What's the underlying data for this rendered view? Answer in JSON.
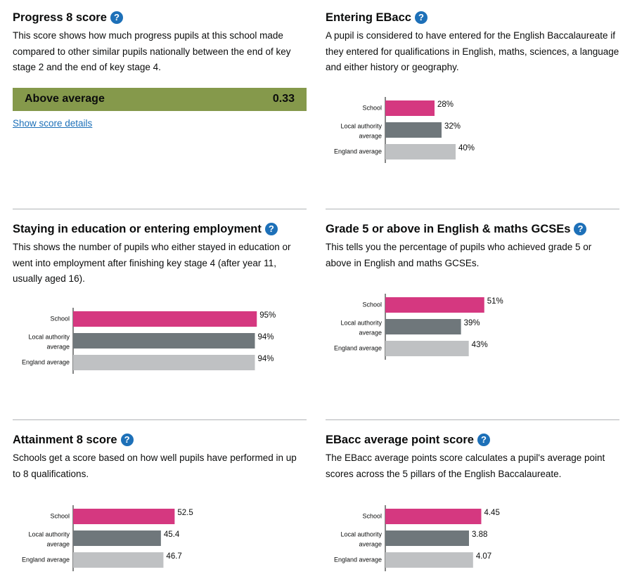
{
  "colors": {
    "school": "#d53880",
    "la": "#6f777b",
    "england": "#bfc1c3",
    "positive": "#85994b",
    "link": "#1d70b8"
  },
  "help_icon": "question-mark-icon",
  "progress8": {
    "title": "Progress 8 score",
    "description": "This score shows how much progress pupils at this school made compared to other similar pupils nationally between the end of key stage 2 and the end of key stage 4.",
    "band": "Above average",
    "score": "0.33",
    "link": "Show score details"
  },
  "ebacc_entering": {
    "title": "Entering EBacc",
    "description": "A pupil is considered to have entered for the English Baccalaureate if they entered for qualifications in English, maths, sciences, a language and either history or geography."
  },
  "staying": {
    "title": "Staying in education or entering employment",
    "description": "This shows the number of pupils who either stayed in education or went into employment after finishing key stage 4 (after year 11, usually aged 16)."
  },
  "grade5": {
    "title": "Grade 5 or above in English & maths GCSEs",
    "description": "This tells you the percentage of pupils who achieved grade 5 or above in English and maths GCSEs."
  },
  "attainment8": {
    "title": "Attainment 8 score",
    "description": "Schools get a score based on how well pupils have performed in up to 8 qualifications."
  },
  "ebacc_aps": {
    "title": "EBacc average point score",
    "description": "The EBacc average points score calculates a pupil's average point scores across the 5 pillars of the English Baccalaureate."
  },
  "chart_data": [
    {
      "id": "ebacc_entering",
      "type": "bar",
      "orientation": "horizontal",
      "categories": [
        [
          "School"
        ],
        [
          "Local authority",
          "average"
        ],
        [
          "England average"
        ]
      ],
      "values": [
        28,
        32,
        40
      ],
      "labels": [
        "28%",
        "32%",
        "40%"
      ],
      "xlim": [
        0,
        100
      ],
      "unit": "%"
    },
    {
      "id": "staying",
      "type": "bar",
      "orientation": "horizontal",
      "categories": [
        [
          "School"
        ],
        [
          "Local authority",
          "average"
        ],
        [
          "England average"
        ]
      ],
      "values": [
        95,
        94,
        94
      ],
      "labels": [
        "95%",
        "94%",
        "94%"
      ],
      "xlim": [
        0,
        100
      ],
      "unit": "%"
    },
    {
      "id": "grade5",
      "type": "bar",
      "orientation": "horizontal",
      "categories": [
        [
          "School"
        ],
        [
          "Local authority",
          "average"
        ],
        [
          "England average"
        ]
      ],
      "values": [
        51,
        39,
        43
      ],
      "labels": [
        "51%",
        "39%",
        "43%"
      ],
      "xlim": [
        0,
        100
      ],
      "unit": "%"
    },
    {
      "id": "attainment8",
      "type": "bar",
      "orientation": "horizontal",
      "categories": [
        [
          "School"
        ],
        [
          "Local authority",
          "average"
        ],
        [
          "England average"
        ]
      ],
      "values": [
        52.5,
        45.4,
        46.7
      ],
      "labels": [
        "52.5",
        "45.4",
        "46.7"
      ],
      "xlim": [
        0,
        100
      ]
    },
    {
      "id": "ebacc_aps",
      "type": "bar",
      "orientation": "horizontal",
      "categories": [
        [
          "School"
        ],
        [
          "Local authority",
          "average"
        ],
        [
          "England average"
        ]
      ],
      "values": [
        4.45,
        3.88,
        4.07
      ],
      "labels": [
        "4.45",
        "3.88",
        "4.07"
      ],
      "xlim": [
        0,
        9
      ]
    }
  ]
}
